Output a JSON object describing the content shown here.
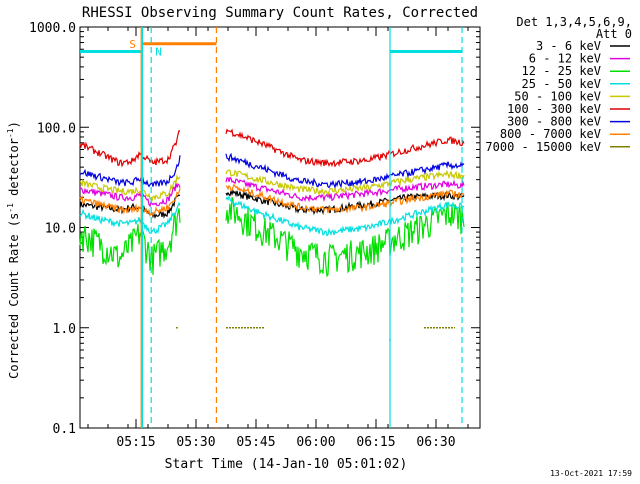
{
  "chart_data": {
    "type": "line",
    "title": "RHESSI Observing Summary Count Rates, Corrected",
    "xlabel": "Start Time (14-Jan-10 05:01:02)",
    "ylabel_main": "Corrected Count Rate (s",
    "ylabel_sup1": "-1",
    "ylabel_mid": " detector",
    "ylabel_sup2": "-1",
    "ylabel_end": ")",
    "y_scale": "log",
    "ylim": [
      0.1,
      1000
    ],
    "y_ticks": [
      {
        "v": 0.1,
        "label": "0.1"
      },
      {
        "v": 1,
        "label": "1.0"
      },
      {
        "v": 10,
        "label": "10.0"
      },
      {
        "v": 100,
        "label": "100.0"
      },
      {
        "v": 1000,
        "label": "1000.0"
      }
    ],
    "x_range_min": [
      0,
      100
    ],
    "x_ticks": [
      {
        "m": 14,
        "label": "05:15"
      },
      {
        "m": 29,
        "label": "05:30"
      },
      {
        "m": 44,
        "label": "05:45"
      },
      {
        "m": 59,
        "label": "06:00"
      },
      {
        "m": 74,
        "label": "06:15"
      },
      {
        "m": 89,
        "label": "06:30"
      }
    ],
    "legend_header": [
      "Det 1,3,4,5,6,9,",
      "Att 0"
    ],
    "legend_placement": "right",
    "footer_date": "13-Oct-2021 17:59",
    "series": [
      {
        "name": "3 - 6 keV",
        "color": "#000000",
        "values": [
          [
            0,
            17
          ],
          [
            5,
            16
          ],
          [
            10,
            15
          ],
          [
            13,
            16
          ],
          [
            15,
            16
          ],
          [
            18,
            13
          ],
          [
            22,
            14
          ],
          [
            24,
            19
          ],
          [
            25,
            20
          ],
          [
            37,
            23
          ],
          [
            45,
            19
          ],
          [
            55,
            15
          ],
          [
            62,
            15
          ],
          [
            72,
            17
          ],
          [
            82,
            20
          ],
          [
            92,
            21
          ],
          [
            96,
            20
          ]
        ]
      },
      {
        "name": "6 - 12 keV",
        "color": "#e000e0",
        "values": [
          [
            0,
            24
          ],
          [
            5,
            22
          ],
          [
            10,
            20
          ],
          [
            13,
            20
          ],
          [
            15,
            21
          ],
          [
            18,
            17
          ],
          [
            22,
            19
          ],
          [
            24,
            26
          ],
          [
            25,
            27
          ],
          [
            37,
            30
          ],
          [
            45,
            25
          ],
          [
            55,
            20
          ],
          [
            62,
            20
          ],
          [
            72,
            22
          ],
          [
            82,
            25
          ],
          [
            92,
            27
          ],
          [
            96,
            26
          ]
        ]
      },
      {
        "name": "12 - 25 keV",
        "color": "#00e000",
        "values": [
          [
            0,
            9
          ],
          [
            5,
            7
          ],
          [
            10,
            5
          ],
          [
            13,
            7
          ],
          [
            15,
            9
          ],
          [
            18,
            5
          ],
          [
            22,
            7
          ],
          [
            24,
            12
          ],
          [
            25,
            15
          ],
          [
            37,
            16
          ],
          [
            45,
            10
          ],
          [
            55,
            6
          ],
          [
            62,
            5
          ],
          [
            72,
            6
          ],
          [
            82,
            9
          ],
          [
            92,
            14
          ],
          [
            96,
            13
          ]
        ]
      },
      {
        "name": "25 - 50 keV",
        "color": "#00e0e0",
        "values": [
          [
            0,
            14
          ],
          [
            5,
            12
          ],
          [
            10,
            11
          ],
          [
            13,
            11
          ],
          [
            15,
            12
          ],
          [
            18,
            9
          ],
          [
            22,
            11
          ],
          [
            24,
            15
          ],
          [
            25,
            17
          ],
          [
            37,
            19
          ],
          [
            45,
            14
          ],
          [
            55,
            10
          ],
          [
            62,
            9
          ],
          [
            72,
            10
          ],
          [
            82,
            13
          ],
          [
            92,
            17
          ],
          [
            96,
            16
          ]
        ]
      },
      {
        "name": "50 - 100 keV",
        "color": "#c8c800",
        "values": [
          [
            0,
            28
          ],
          [
            5,
            25
          ],
          [
            10,
            23
          ],
          [
            13,
            23
          ],
          [
            15,
            24
          ],
          [
            18,
            20
          ],
          [
            22,
            22
          ],
          [
            24,
            30
          ],
          [
            25,
            33
          ],
          [
            37,
            36
          ],
          [
            45,
            30
          ],
          [
            55,
            24
          ],
          [
            62,
            23
          ],
          [
            72,
            25
          ],
          [
            82,
            30
          ],
          [
            92,
            34
          ],
          [
            96,
            33
          ]
        ]
      },
      {
        "name": "100 - 300 keV",
        "color": "#e00000",
        "values": [
          [
            0,
            68
          ],
          [
            5,
            55
          ],
          [
            10,
            44
          ],
          [
            13,
            46
          ],
          [
            15,
            55
          ],
          [
            18,
            44
          ],
          [
            22,
            48
          ],
          [
            24,
            70
          ],
          [
            25,
            92
          ],
          [
            37,
            93
          ],
          [
            45,
            70
          ],
          [
            55,
            47
          ],
          [
            62,
            44
          ],
          [
            72,
            47
          ],
          [
            82,
            60
          ],
          [
            92,
            75
          ],
          [
            96,
            70
          ]
        ]
      },
      {
        "name": "300 - 800 keV",
        "color": "#0000e0",
        "values": [
          [
            0,
            36
          ],
          [
            5,
            32
          ],
          [
            10,
            28
          ],
          [
            13,
            28
          ],
          [
            15,
            31
          ],
          [
            18,
            26
          ],
          [
            22,
            29
          ],
          [
            24,
            38
          ],
          [
            25,
            50
          ],
          [
            37,
            51
          ],
          [
            45,
            40
          ],
          [
            55,
            29
          ],
          [
            62,
            27
          ],
          [
            72,
            29
          ],
          [
            82,
            35
          ],
          [
            92,
            42
          ],
          [
            96,
            41
          ]
        ]
      },
      {
        "name": "800 - 7000 keV",
        "color": "#ff8000",
        "values": [
          [
            0,
            19
          ],
          [
            5,
            17
          ],
          [
            10,
            15
          ],
          [
            13,
            15
          ],
          [
            15,
            16
          ],
          [
            18,
            14
          ],
          [
            22,
            16
          ],
          [
            24,
            20
          ],
          [
            25,
            24
          ],
          [
            37,
            26
          ],
          [
            45,
            21
          ],
          [
            55,
            16
          ],
          [
            62,
            15
          ],
          [
            72,
            16
          ],
          [
            82,
            19
          ],
          [
            92,
            22
          ],
          [
            96,
            21
          ]
        ]
      },
      {
        "name": "7000 - 15000 keV",
        "color": "#808000",
        "values": []
      }
    ],
    "annotations": [
      {
        "label": "S",
        "color": "#ff8000"
      },
      {
        "label": "N",
        "color": "#00e0e0"
      }
    ],
    "flag_segments": [
      {
        "color": "#00e0e0",
        "y": 570,
        "from": 0,
        "to": 15.3
      },
      {
        "color": "#ff8000",
        "y": 680,
        "from": 15.5,
        "to": 34.1
      },
      {
        "color": "#00e0e0",
        "y": 570,
        "from": 77.5,
        "to": 95.5
      }
    ],
    "vertical_markers": [
      {
        "color": "#ff8000",
        "style": "solid",
        "m": 15.3
      },
      {
        "color": "#00e0e0",
        "style": "solid",
        "m": 15.6
      },
      {
        "color": "#00e0e0",
        "style": "dashed",
        "m": 17.8
      },
      {
        "color": "#ff8000",
        "style": "dashed",
        "m": 34.1
      },
      {
        "color": "#00e0e0",
        "style": "solid",
        "m": 77.5
      },
      {
        "color": "#00e0e0",
        "style": "dashed",
        "m": 95.5
      }
    ],
    "small_marks": [
      {
        "color": "#808000",
        "m_from": 24.0,
        "m_to": 24.2,
        "v": 1.0
      },
      {
        "color": "#808000",
        "m_from": 36.5,
        "m_to": 46.0,
        "v": 1.0
      },
      {
        "color": "#808000",
        "m_from": 86.0,
        "m_to": 93.5,
        "v": 1.0
      },
      {
        "color": "#00a000",
        "m_from": 77.3,
        "m_to": 77.4,
        "v": 0.75
      }
    ],
    "data_gap": [
      25,
      36.5
    ]
  }
}
